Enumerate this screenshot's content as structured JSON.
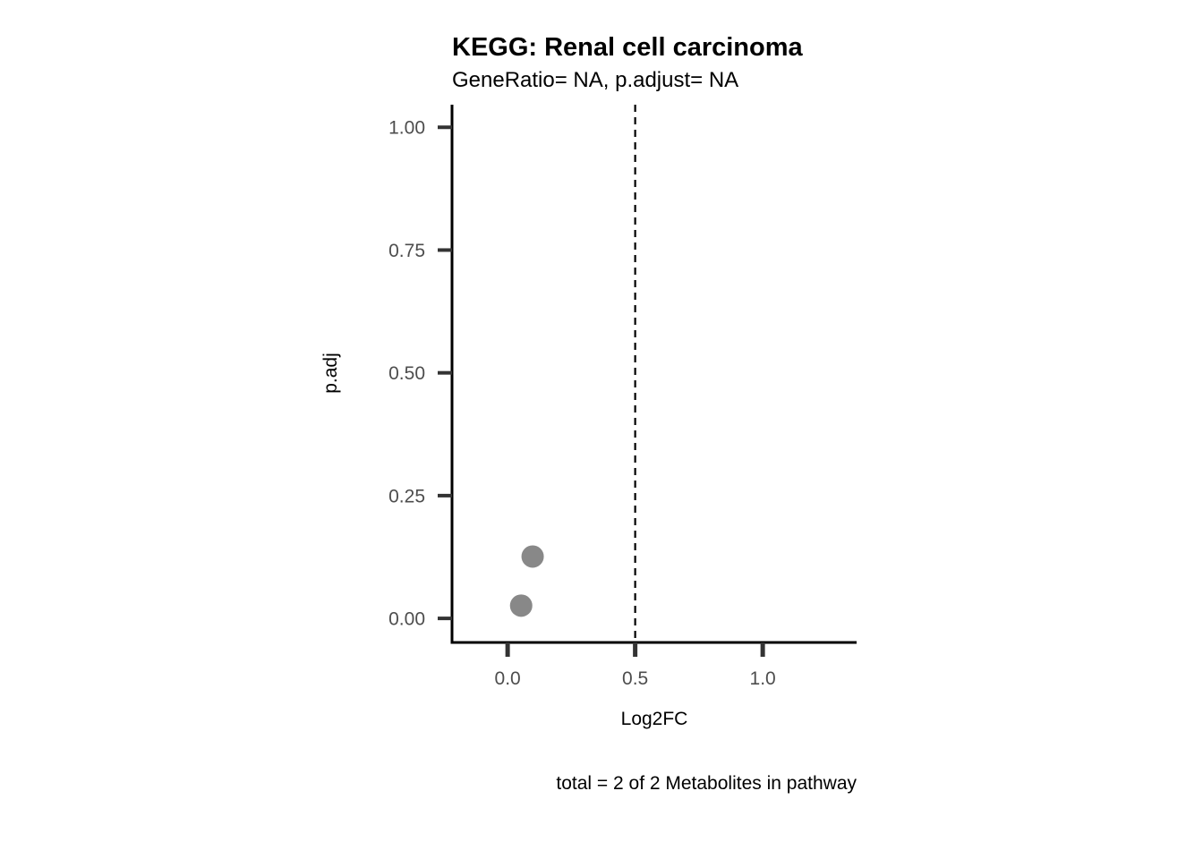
{
  "chart_data": {
    "type": "scatter",
    "title": "KEGG: Renal cell carcinoma",
    "subtitle": "GeneRatio= NA, p.adjust= NA",
    "xlabel": "Log2FC",
    "ylabel": "p.adj",
    "caption": "total = 2 of 2 Metabolites in pathway",
    "xlim": [
      -0.218,
      1.368
    ],
    "ylim": [
      -0.049,
      1.046
    ],
    "x_ticks": [
      0.0,
      0.5,
      1.0
    ],
    "x_tick_labels": [
      "0.0",
      "0.5",
      "1.0"
    ],
    "y_ticks": [
      0.0,
      0.25,
      0.5,
      0.75,
      1.0
    ],
    "y_tick_labels": [
      "0.00",
      "0.25",
      "0.50",
      "0.75",
      "1.00"
    ],
    "grid": false,
    "reference_lines": [
      {
        "axis": "x",
        "value": 0.5,
        "style": "dashed",
        "color": "#000000"
      }
    ],
    "points": [
      {
        "x": 0.098,
        "y": 0.126
      },
      {
        "x": 0.053,
        "y": 0.026
      }
    ],
    "point_color": "#888888",
    "axis_color": "#000000",
    "tick_color": "#333333"
  }
}
